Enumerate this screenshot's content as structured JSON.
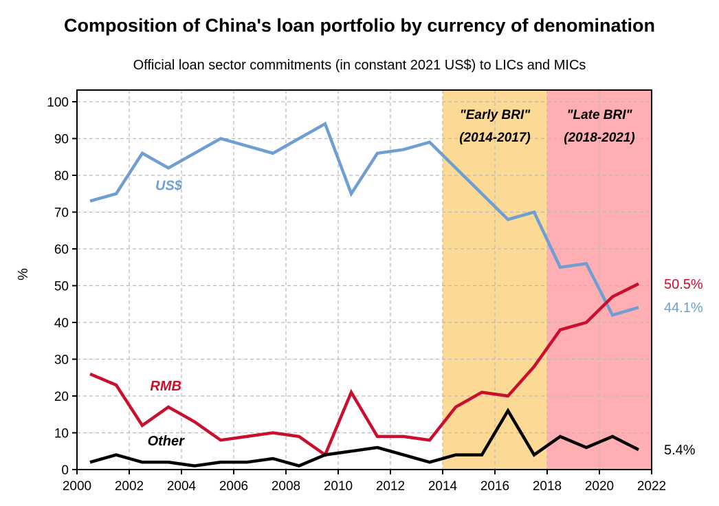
{
  "chart_data": {
    "type": "line",
    "title": "Composition of China's loan portfolio by currency of denomination",
    "subtitle": "Official loan sector commitments (in constant 2021 US$) to LICs and MICs",
    "xlabel": "",
    "ylabel": "%",
    "xlim": [
      2000,
      2022
    ],
    "ylim": [
      0,
      100
    ],
    "x_ticks": [
      "2000",
      "2002",
      "2004",
      "2006",
      "2008",
      "2010",
      "2012",
      "2014",
      "2016",
      "2018",
      "2020",
      "2022"
    ],
    "y_ticks": [
      "0",
      "10",
      "20",
      "30",
      "40",
      "50",
      "60",
      "70",
      "80",
      "90",
      "100"
    ],
    "grid": true,
    "x": [
      2000.5,
      2001.5,
      2002.5,
      2003.5,
      2004.5,
      2005.5,
      2006.5,
      2007.5,
      2008.5,
      2009.5,
      2010.5,
      2011.5,
      2012.5,
      2013.5,
      2014.5,
      2015.5,
      2016.5,
      2017.5,
      2018.5,
      2019.5,
      2020.5,
      2021.5
    ],
    "series": [
      {
        "name": "US$",
        "label": "US$",
        "color": "#6f9fd1",
        "values": [
          73,
          75,
          86,
          82,
          86,
          90,
          88,
          86,
          90,
          94,
          75,
          86,
          87,
          89,
          82,
          75,
          68,
          70,
          55,
          56,
          42,
          44.1
        ],
        "end_label": "44.1%",
        "label_anchor": [
          2003,
          76
        ]
      },
      {
        "name": "RMB",
        "label": "RMB",
        "color": "#c8102e",
        "values": [
          26,
          23,
          12,
          17,
          13,
          8,
          9,
          10,
          9,
          4,
          21,
          9,
          9,
          8,
          17,
          21,
          20,
          28,
          38,
          40,
          47,
          50.5
        ],
        "end_label": "50.5%",
        "label_anchor": [
          2002.8,
          21.5
        ]
      },
      {
        "name": "Other",
        "label": "Other",
        "color": "#000000",
        "values": [
          2,
          4,
          2,
          2,
          1,
          2,
          2,
          3,
          1,
          4,
          5,
          6,
          4,
          2,
          4,
          4,
          16,
          4,
          9,
          6,
          9,
          5.4
        ],
        "end_label": "5.4%",
        "label_anchor": [
          2002.7,
          6.5
        ]
      }
    ],
    "shaded_periods": [
      {
        "label_line1": "\"Early BRI\"",
        "label_line2": "(2014-2017)",
        "x_start": 2014,
        "x_end": 2018,
        "color": "#fcd994"
      },
      {
        "label_line1": "\"Late BRI\"",
        "label_line2": "(2018-2021)",
        "x_start": 2018,
        "x_end": 2022,
        "color": "#ffafb4"
      }
    ]
  }
}
